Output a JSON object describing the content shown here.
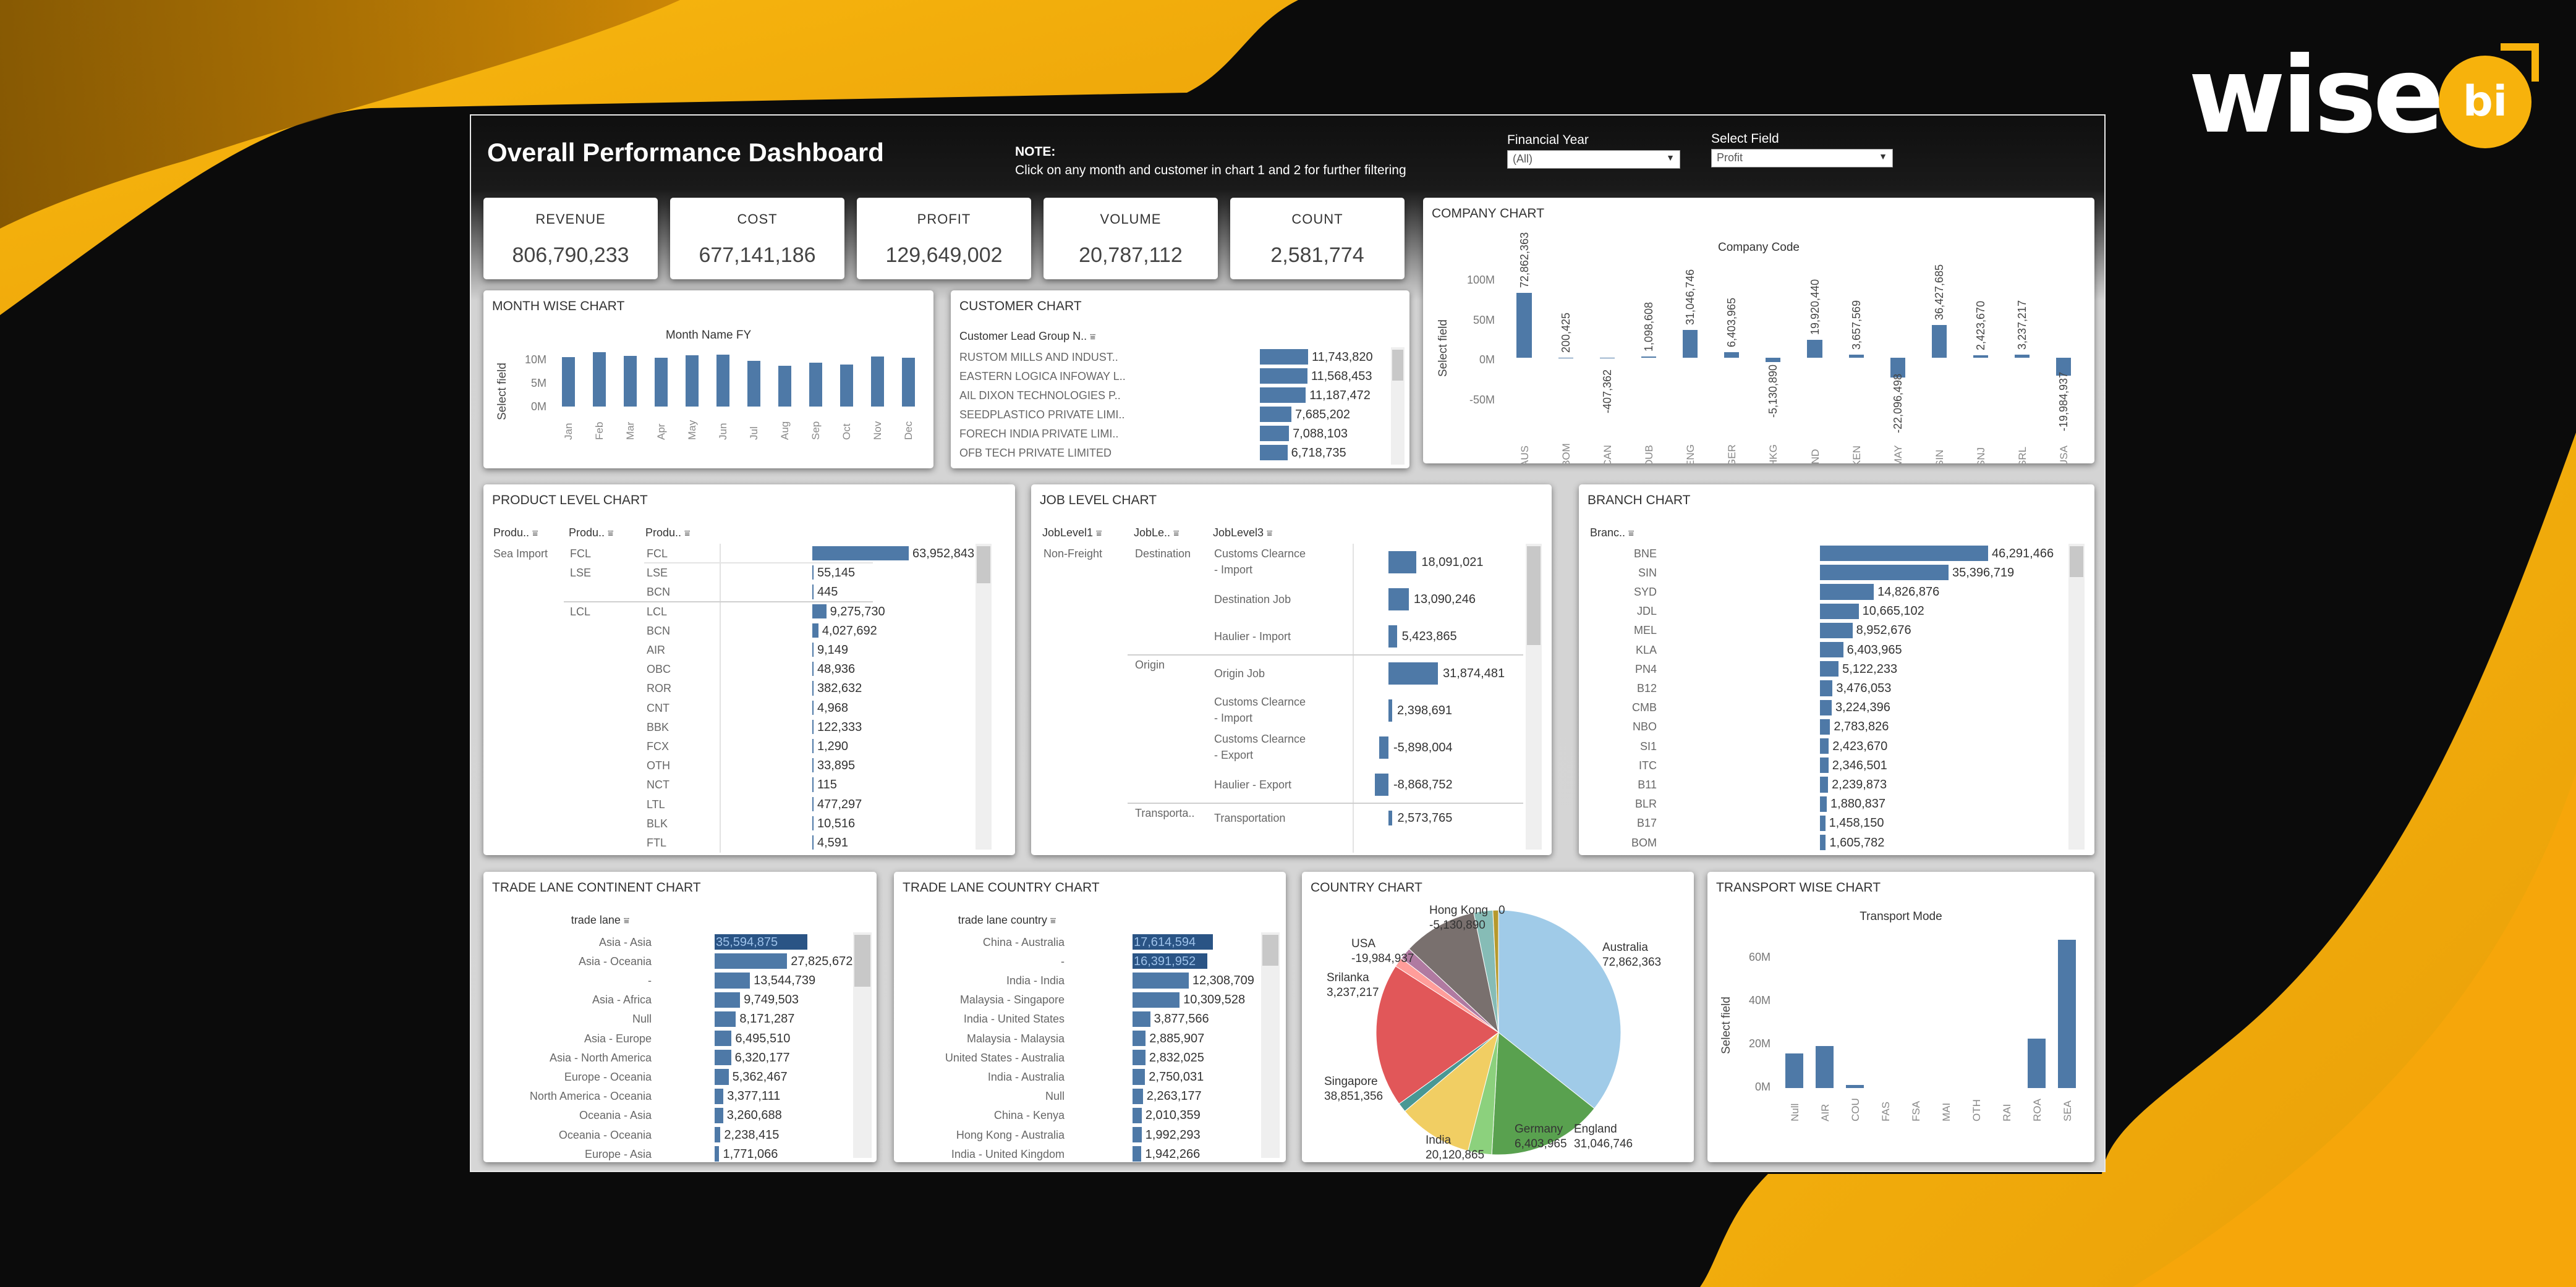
{
  "brand": {
    "word": "wise",
    "badge": "bi"
  },
  "header": {
    "title": "Overall Performance Dashboard",
    "note_title": "NOTE:",
    "note_text": "Click on any month and customer in chart 1 and 2 for further filtering",
    "fy_label": "Financial Year",
    "fy_value": "(All)",
    "field_label": "Select Field",
    "field_value": "Profit"
  },
  "kpis": [
    {
      "label": "REVENUE",
      "value": "806,790,233"
    },
    {
      "label": "COST",
      "value": "677,141,186"
    },
    {
      "label": "PROFIT",
      "value": "129,649,002"
    },
    {
      "label": "VOLUME",
      "value": "20,787,112"
    },
    {
      "label": "COUNT",
      "value": "2,581,774"
    }
  ],
  "company_chart": {
    "title": "COMPANY CHART",
    "subtitle": "Company Code",
    "ylabel": "Select field",
    "yticks": [
      "100M",
      "50M",
      "0M",
      "-50M"
    ],
    "categories": [
      "AUS",
      "BOM",
      "CAN",
      "DUB",
      "ENG",
      "GER",
      "HKG",
      "IND",
      "KEN",
      "MAY",
      "SIN",
      "SNJ",
      "SRL",
      "USA"
    ],
    "values": [
      72862363,
      200425,
      -407362,
      1098608,
      31046746,
      6403965,
      -5130890,
      19920440,
      3657569,
      -22096498,
      36427685,
      2423670,
      3237217,
      -19984937
    ],
    "labels": [
      "72,862,363",
      "200,425",
      "-407,362",
      "1,098,608",
      "31,046,746",
      "6,403,965",
      "-5,130,890",
      "19,920,440",
      "3,657,569",
      "-22,096,498",
      "36,427,685",
      "2,423,670",
      "3,237,217",
      "-19,984,937"
    ],
    "ylim": [
      -70000000,
      110000000
    ]
  },
  "month_chart": {
    "title": "MONTH WISE CHART",
    "subtitle": "Month Name FY",
    "ylabel": "Select field",
    "yticks": [
      "10M",
      "5M",
      "0M"
    ],
    "categories": [
      "Jan",
      "Feb",
      "Mar",
      "Apr",
      "May",
      "Jun",
      "Jul",
      "Aug",
      "Sep",
      "Oct",
      "Nov",
      "Dec"
    ],
    "values": [
      11200000,
      12300000,
      11500000,
      11100000,
      11600000,
      11700000,
      10400000,
      9300000,
      10000000,
      9500000,
      11300000,
      11100000
    ],
    "ylim": [
      0,
      14000000
    ]
  },
  "customer_chart": {
    "title": "CUSTOMER CHART",
    "header": "Customer Lead Group N..",
    "rows": [
      {
        "name": "RUSTOM MILLS AND INDUST..",
        "value": 11743820,
        "label": "11,743,820"
      },
      {
        "name": "EASTERN LOGICA INFOWAY L..",
        "value": 11568453,
        "label": "11,568,453"
      },
      {
        "name": "AIL DIXON TECHNOLOGIES P..",
        "value": 11187472,
        "label": "11,187,472"
      },
      {
        "name": "SEEDPLASTICO PRIVATE LIMI..",
        "value": 7685202,
        "label": "7,685,202"
      },
      {
        "name": "FORECH INDIA PRIVATE LIMI..",
        "value": 7088103,
        "label": "7,088,103"
      },
      {
        "name": "OFB TECH PRIVATE LIMITED",
        "value": 6718735,
        "label": "6,718,735"
      }
    ]
  },
  "product_chart": {
    "title": "PRODUCT LEVEL CHART",
    "headers": [
      "Produ..",
      "Produ..",
      "Produ.."
    ],
    "rows": [
      {
        "c1": "Sea Import",
        "c2": "FCL",
        "c3": "FCL",
        "value": 63952843,
        "label": "63,952,843"
      },
      {
        "c1": "",
        "c2": "LSE",
        "c3": "LSE",
        "value": 55145,
        "label": "55,145"
      },
      {
        "c1": "",
        "c2": "",
        "c3": "BCN",
        "value": 445,
        "label": "445"
      },
      {
        "c1": "",
        "c2": "LCL",
        "c3": "LCL",
        "value": 9275730,
        "label": "9,275,730"
      },
      {
        "c1": "",
        "c2": "",
        "c3": "BCN",
        "value": 4027692,
        "label": "4,027,692"
      },
      {
        "c1": "",
        "c2": "",
        "c3": "AIR",
        "value": 9149,
        "label": "9,149"
      },
      {
        "c1": "",
        "c2": "",
        "c3": "OBC",
        "value": 48936,
        "label": "48,936"
      },
      {
        "c1": "",
        "c2": "",
        "c3": "ROR",
        "value": 382632,
        "label": "382,632"
      },
      {
        "c1": "",
        "c2": "",
        "c3": "CNT",
        "value": 4968,
        "label": "4,968"
      },
      {
        "c1": "",
        "c2": "",
        "c3": "BBK",
        "value": 122333,
        "label": "122,333"
      },
      {
        "c1": "",
        "c2": "",
        "c3": "FCX",
        "value": 1290,
        "label": "1,290"
      },
      {
        "c1": "",
        "c2": "",
        "c3": "OTH",
        "value": 33895,
        "label": "33,895"
      },
      {
        "c1": "",
        "c2": "",
        "c3": "NCT",
        "value": 115,
        "label": "115"
      },
      {
        "c1": "",
        "c2": "",
        "c3": "LTL",
        "value": 477297,
        "label": "477,297"
      },
      {
        "c1": "",
        "c2": "",
        "c3": "BLK",
        "value": 10516,
        "label": "10,516"
      },
      {
        "c1": "",
        "c2": "",
        "c3": "FTL",
        "value": 4591,
        "label": "4,591"
      }
    ]
  },
  "job_chart": {
    "title": "JOB LEVEL CHART",
    "headers": [
      "JobLevel1",
      "JobLe..",
      "JobLevel3"
    ],
    "rows": [
      {
        "c1": "Non-Freight",
        "c2": "Destination",
        "c3": [
          "Customs Clearnce",
          "- Import"
        ],
        "value": 18091021,
        "label": "18,091,021"
      },
      {
        "c1": "",
        "c2": "",
        "c3": [
          "Destination Job"
        ],
        "value": 13090246,
        "label": "13,090,246"
      },
      {
        "c1": "",
        "c2": "",
        "c3": [
          "Haulier - Import"
        ],
        "value": 5423865,
        "label": "5,423,865"
      },
      {
        "c1": "",
        "c2": "Origin",
        "c3": [
          "Origin Job"
        ],
        "value": 31874481,
        "label": "31,874,481"
      },
      {
        "c1": "",
        "c2": "",
        "c3": [
          "Customs Clearnce",
          "- Import"
        ],
        "value": 2398691,
        "label": "2,398,691"
      },
      {
        "c1": "",
        "c2": "",
        "c3": [
          "Customs Clearnce",
          "- Export"
        ],
        "value": -5898004,
        "label": "-5,898,004"
      },
      {
        "c1": "",
        "c2": "",
        "c3": [
          "Haulier - Export"
        ],
        "value": -8868752,
        "label": "-8,868,752"
      },
      {
        "c1": "",
        "c2": "Transporta..",
        "c3": [
          "Transportation"
        ],
        "value": 2573765,
        "label": "2,573,765"
      }
    ]
  },
  "branch_chart": {
    "title": "BRANCH CHART",
    "header": "Branc..",
    "rows": [
      {
        "name": "BNE",
        "value": 46291466,
        "label": "46,291,466"
      },
      {
        "name": "SIN",
        "value": 35396719,
        "label": "35,396,719"
      },
      {
        "name": "SYD",
        "value": 14826876,
        "label": "14,826,876"
      },
      {
        "name": "JDL",
        "value": 10665102,
        "label": "10,665,102"
      },
      {
        "name": "MEL",
        "value": 8952676,
        "label": "8,952,676"
      },
      {
        "name": "KLA",
        "value": 6403965,
        "label": "6,403,965"
      },
      {
        "name": "PN4",
        "value": 5122233,
        "label": "5,122,233"
      },
      {
        "name": "B12",
        "value": 3476053,
        "label": "3,476,053"
      },
      {
        "name": "CMB",
        "value": 3224396,
        "label": "3,224,396"
      },
      {
        "name": "NBO",
        "value": 2783826,
        "label": "2,783,826"
      },
      {
        "name": "SI1",
        "value": 2423670,
        "label": "2,423,670"
      },
      {
        "name": "ITC",
        "value": 2346501,
        "label": "2,346,501"
      },
      {
        "name": "B11",
        "value": 2239873,
        "label": "2,239,873"
      },
      {
        "name": "BLR",
        "value": 1880837,
        "label": "1,880,837"
      },
      {
        "name": "B17",
        "value": 1458150,
        "label": "1,458,150"
      },
      {
        "name": "BOM",
        "value": 1605782,
        "label": "1,605,782"
      }
    ]
  },
  "trade_continent": {
    "title": "TRADE LANE CONTINENT CHART",
    "header": "trade lane",
    "rows": [
      {
        "name": "Asia - Asia",
        "value": 35594875,
        "label": "35,594,875"
      },
      {
        "name": "Asia - Oceania",
        "value": 27825672,
        "label": "27,825,672"
      },
      {
        "name": "-",
        "value": 13544739,
        "label": "13,544,739"
      },
      {
        "name": "Asia - Africa",
        "value": 9749503,
        "label": "9,749,503"
      },
      {
        "name": "Null",
        "value": 8171287,
        "label": "8,171,287"
      },
      {
        "name": "Asia - Europe",
        "value": 6495510,
        "label": "6,495,510"
      },
      {
        "name": "Asia - North America",
        "value": 6320177,
        "label": "6,320,177"
      },
      {
        "name": "Europe - Oceania",
        "value": 5362467,
        "label": "5,362,467"
      },
      {
        "name": "North America - Oceania",
        "value": 3377111,
        "label": "3,377,111"
      },
      {
        "name": "Oceania - Asia",
        "value": 3260688,
        "label": "3,260,688"
      },
      {
        "name": "Oceania - Oceania",
        "value": 2238415,
        "label": "2,238,415"
      },
      {
        "name": "Europe - Asia",
        "value": 1771066,
        "label": "1,771,066"
      }
    ]
  },
  "trade_country": {
    "title": "TRADE LANE COUNTRY CHART",
    "header": "trade lane country",
    "rows": [
      {
        "name": "China - Australia",
        "value": 17614594,
        "label": "17,614,594"
      },
      {
        "name": "-",
        "value": 16391952,
        "label": "16,391,952"
      },
      {
        "name": "India - India",
        "value": 12308709,
        "label": "12,308,709"
      },
      {
        "name": "Malaysia - Singapore",
        "value": 10309528,
        "label": "10,309,528"
      },
      {
        "name": "India - United States",
        "value": 3877566,
        "label": "3,877,566"
      },
      {
        "name": "Malaysia - Malaysia",
        "value": 2885907,
        "label": "2,885,907"
      },
      {
        "name": "United States - Australia",
        "value": 2832025,
        "label": "2,832,025"
      },
      {
        "name": "India - Australia",
        "value": 2750031,
        "label": "2,750,031"
      },
      {
        "name": "Null",
        "value": 2263177,
        "label": "2,263,177"
      },
      {
        "name": "China - Kenya",
        "value": 2010359,
        "label": "2,010,359"
      },
      {
        "name": "Hong Kong - Australia",
        "value": 1992293,
        "label": "1,992,293"
      },
      {
        "name": "India - United Kingdom",
        "value": 1942266,
        "label": "1,942,266"
      }
    ]
  },
  "country_chart": {
    "title": "COUNTRY CHART",
    "slices": [
      {
        "name": "Australia",
        "value": 72862363,
        "label": "72,862,363",
        "color": "#a0cbe8"
      },
      {
        "name": "England",
        "value": 31046746,
        "label": "31,046,746",
        "color": "#59a14f"
      },
      {
        "name": "Germany",
        "value": 6403965,
        "label": "6,403,965",
        "color": "#8cd17d"
      },
      {
        "name": "India",
        "value": 20120865,
        "label": "20,120,865",
        "color": "#f1ce63"
      },
      {
        "name": "",
        "value": 2500000,
        "label": "",
        "color": "#499894"
      },
      {
        "name": "Singapore",
        "value": 38851356,
        "label": "38,851,356",
        "color": "#e15759"
      },
      {
        "name": "",
        "value": 2600000,
        "label": "",
        "color": "#ff9d9a"
      },
      {
        "name": "Srilanka",
        "value": 3237217,
        "label": "3,237,217",
        "color": "#b07aa1"
      },
      {
        "name": "USA",
        "value": 19984937,
        "label": "-19,984,937",
        "color": "#79706e"
      },
      {
        "name": "Hong Kong",
        "value": 5130890,
        "label": "-5,130,890",
        "color": "#86bcb6"
      },
      {
        "name": "",
        "value": 1500000,
        "label": "0",
        "color": "#b6992d"
      }
    ]
  },
  "transport_chart": {
    "title": "TRANSPORT WISE CHART",
    "subtitle": "Transport Mode",
    "ylabel": "Select field",
    "yticks": [
      "60M",
      "40M",
      "20M",
      "0M"
    ],
    "categories": [
      "Null",
      "AIR",
      "COU",
      "FAS",
      "FSA",
      "MAI",
      "OTH",
      "RAI",
      "ROA",
      "SEA"
    ],
    "values": [
      16000000,
      19500000,
      1500000,
      0,
      0,
      0,
      0,
      0,
      23000000,
      69000000
    ],
    "ylim": [
      0,
      72000000
    ]
  }
}
